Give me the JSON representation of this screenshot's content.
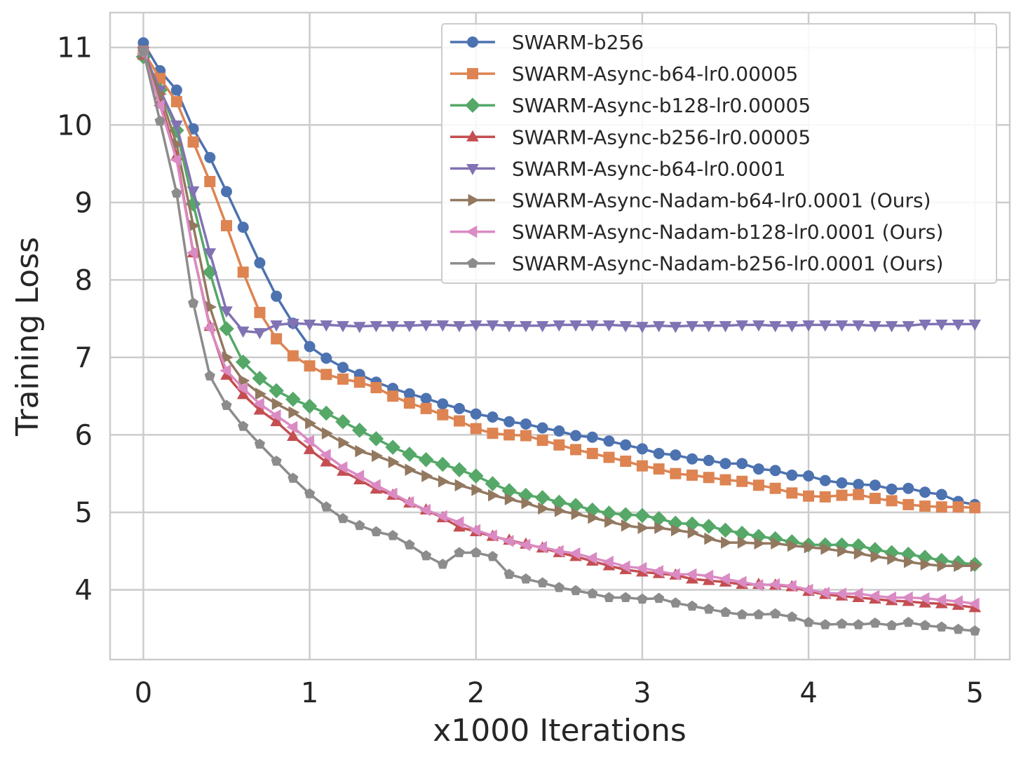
{
  "chart_data": {
    "type": "line",
    "title": "",
    "xlabel": "x1000 Iterations",
    "ylabel": "Training Loss",
    "xlim": [
      -0.2,
      5.21
    ],
    "ylim": [
      3.1,
      11.45
    ],
    "xticks": [
      0,
      1,
      2,
      3,
      4,
      5
    ],
    "yticks": [
      4,
      5,
      6,
      7,
      8,
      9,
      10,
      11
    ],
    "grid": true,
    "legend_position": "top-right",
    "x": [
      0,
      0.1,
      0.2,
      0.3,
      0.4,
      0.5,
      0.6,
      0.7,
      0.8,
      0.9,
      1.0,
      1.1,
      1.2,
      1.3,
      1.4,
      1.5,
      1.6,
      1.7,
      1.8,
      1.9,
      2.0,
      2.1,
      2.2,
      2.3,
      2.4,
      2.5,
      2.6,
      2.7,
      2.8,
      2.9,
      3.0,
      3.1,
      3.2,
      3.3,
      3.4,
      3.5,
      3.6,
      3.7,
      3.8,
      3.9,
      4.0,
      4.1,
      4.2,
      4.3,
      4.4,
      4.5,
      4.6,
      4.7,
      4.8,
      4.9,
      5.0
    ],
    "series": [
      {
        "name": "SWARM-b256",
        "color": "#4c72b0",
        "marker": "circle",
        "values": [
          11.06,
          10.7,
          10.45,
          9.95,
          9.58,
          9.14,
          8.68,
          8.22,
          7.79,
          7.44,
          7.14,
          6.99,
          6.87,
          6.78,
          6.68,
          6.6,
          6.53,
          6.47,
          6.4,
          6.34,
          6.27,
          6.23,
          6.17,
          6.14,
          6.09,
          6.05,
          5.99,
          5.97,
          5.92,
          5.87,
          5.82,
          5.76,
          5.74,
          5.69,
          5.67,
          5.63,
          5.63,
          5.56,
          5.54,
          5.48,
          5.47,
          5.41,
          5.38,
          5.36,
          5.35,
          5.3,
          5.31,
          5.26,
          5.23,
          5.14,
          5.1
        ]
      },
      {
        "name": "SWARM-Async-b64-lr0.00005",
        "color": "#dd8452",
        "marker": "square",
        "values": [
          10.95,
          10.6,
          10.3,
          9.78,
          9.27,
          8.7,
          8.1,
          7.58,
          7.24,
          7.02,
          6.89,
          6.78,
          6.72,
          6.68,
          6.61,
          6.5,
          6.41,
          6.34,
          6.26,
          6.18,
          6.08,
          6.02,
          6.0,
          5.99,
          5.93,
          5.87,
          5.81,
          5.76,
          5.71,
          5.66,
          5.6,
          5.56,
          5.5,
          5.48,
          5.45,
          5.42,
          5.4,
          5.35,
          5.31,
          5.25,
          5.21,
          5.2,
          5.22,
          5.23,
          5.18,
          5.15,
          5.1,
          5.08,
          5.07,
          5.07,
          5.06
        ]
      },
      {
        "name": "SWARM-Async-b128-lr0.00005",
        "color": "#55a868",
        "marker": "diamond",
        "values": [
          10.88,
          10.45,
          9.93,
          8.98,
          8.1,
          7.37,
          6.94,
          6.73,
          6.57,
          6.46,
          6.37,
          6.28,
          6.17,
          6.06,
          5.95,
          5.84,
          5.75,
          5.68,
          5.62,
          5.55,
          5.47,
          5.37,
          5.28,
          5.22,
          5.19,
          5.13,
          5.09,
          5.03,
          4.99,
          4.97,
          4.96,
          4.92,
          4.86,
          4.85,
          4.82,
          4.77,
          4.73,
          4.69,
          4.66,
          4.62,
          4.58,
          4.58,
          4.58,
          4.57,
          4.52,
          4.48,
          4.46,
          4.42,
          4.38,
          4.35,
          4.33
        ]
      },
      {
        "name": "SWARM-Async-b256-lr0.00005",
        "color": "#c44e52",
        "marker": "triangle-up",
        "values": [
          10.9,
          10.3,
          9.6,
          8.35,
          7.4,
          6.77,
          6.52,
          6.32,
          6.17,
          5.98,
          5.81,
          5.65,
          5.53,
          5.42,
          5.3,
          5.22,
          5.12,
          5.03,
          4.93,
          4.81,
          4.75,
          4.69,
          4.64,
          4.59,
          4.54,
          4.48,
          4.43,
          4.37,
          4.31,
          4.26,
          4.23,
          4.21,
          4.19,
          4.14,
          4.12,
          4.1,
          4.07,
          4.07,
          4.06,
          4.04,
          3.98,
          3.94,
          3.92,
          3.9,
          3.88,
          3.86,
          3.85,
          3.83,
          3.82,
          3.8,
          3.77
        ]
      },
      {
        "name": "SWARM-Async-b64-lr0.0001",
        "color": "#8172b3",
        "marker": "triangle-down",
        "values": [
          10.95,
          10.45,
          10.0,
          9.15,
          8.35,
          7.6,
          7.34,
          7.32,
          7.42,
          7.44,
          7.43,
          7.42,
          7.41,
          7.4,
          7.41,
          7.41,
          7.41,
          7.42,
          7.42,
          7.41,
          7.42,
          7.42,
          7.41,
          7.41,
          7.41,
          7.42,
          7.42,
          7.42,
          7.42,
          7.41,
          7.4,
          7.41,
          7.4,
          7.41,
          7.41,
          7.41,
          7.42,
          7.42,
          7.41,
          7.41,
          7.42,
          7.42,
          7.42,
          7.42,
          7.41,
          7.41,
          7.41,
          7.43,
          7.43,
          7.43,
          7.43
        ]
      },
      {
        "name": "SWARM-Async-Nadam-b64-lr0.0001 (Ours)",
        "color": "#937860",
        "marker": "triangle-right",
        "values": [
          10.92,
          10.4,
          9.75,
          8.7,
          7.65,
          7.0,
          6.7,
          6.53,
          6.4,
          6.29,
          6.15,
          6.02,
          5.9,
          5.79,
          5.73,
          5.65,
          5.55,
          5.47,
          5.4,
          5.35,
          5.29,
          5.22,
          5.17,
          5.12,
          5.05,
          5.02,
          4.98,
          4.93,
          4.88,
          4.83,
          4.8,
          4.8,
          4.77,
          4.74,
          4.66,
          4.61,
          4.61,
          4.6,
          4.6,
          4.57,
          4.55,
          4.53,
          4.5,
          4.47,
          4.43,
          4.4,
          4.36,
          4.33,
          4.31,
          4.31,
          4.31
        ]
      },
      {
        "name": "SWARM-Async-Nadam-b128-lr0.0001 (Ours)",
        "color": "#da8bc3",
        "marker": "triangle-left",
        "values": [
          10.92,
          10.25,
          9.55,
          8.35,
          7.38,
          6.83,
          6.6,
          6.4,
          6.25,
          6.1,
          5.92,
          5.74,
          5.58,
          5.47,
          5.35,
          5.24,
          5.13,
          5.03,
          4.95,
          4.87,
          4.77,
          4.7,
          4.63,
          4.58,
          4.55,
          4.5,
          4.47,
          4.41,
          4.36,
          4.3,
          4.28,
          4.24,
          4.2,
          4.2,
          4.18,
          4.14,
          4.1,
          4.06,
          4.07,
          4.05,
          4.0,
          3.96,
          3.95,
          3.95,
          3.92,
          3.9,
          3.9,
          3.89,
          3.87,
          3.85,
          3.82
        ]
      },
      {
        "name": "SWARM-Async-Nadam-b256-lr0.0001 (Ours)",
        "color": "#8c8c8c",
        "marker": "pentagon",
        "values": [
          10.95,
          10.05,
          9.12,
          7.7,
          6.76,
          6.38,
          6.11,
          5.88,
          5.66,
          5.44,
          5.24,
          5.07,
          4.92,
          4.83,
          4.75,
          4.7,
          4.58,
          4.44,
          4.33,
          4.48,
          4.48,
          4.43,
          4.2,
          4.14,
          4.09,
          4.03,
          3.99,
          3.95,
          3.9,
          3.9,
          3.88,
          3.89,
          3.83,
          3.79,
          3.75,
          3.71,
          3.68,
          3.68,
          3.69,
          3.65,
          3.58,
          3.55,
          3.56,
          3.55,
          3.57,
          3.54,
          3.58,
          3.54,
          3.52,
          3.49,
          3.47
        ]
      }
    ]
  }
}
